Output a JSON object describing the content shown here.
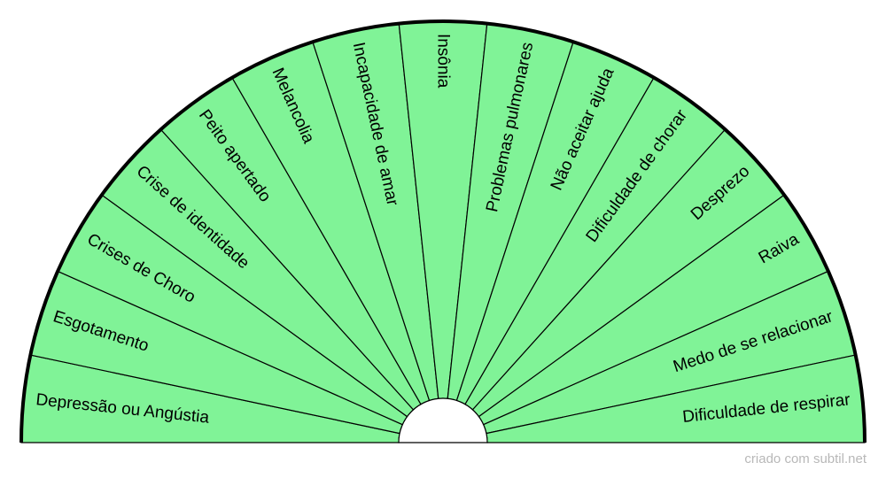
{
  "diagram": {
    "fill_color": "#80f397",
    "line_color": "#000000",
    "segments": [
      {
        "label": "Depressão ou Angústia"
      },
      {
        "label": "Esgotamento"
      },
      {
        "label": "Crises de Choro"
      },
      {
        "label": "Crise de identidade"
      },
      {
        "label": "Peito apertado"
      },
      {
        "label": "Melancolia"
      },
      {
        "label": "Incapacidade de amar"
      },
      {
        "label": "Insônia"
      },
      {
        "label": "Problemas pulmonares"
      },
      {
        "label": "Não aceitar ajuda"
      },
      {
        "label": "Dificuldade de chorar"
      },
      {
        "label": "Desprezo"
      },
      {
        "label": "Raiva"
      },
      {
        "label": "Medo de se relacionar"
      },
      {
        "label": "Dificuldade de respirar"
      }
    ]
  },
  "footer": {
    "credit": "criado com subtil.net"
  }
}
